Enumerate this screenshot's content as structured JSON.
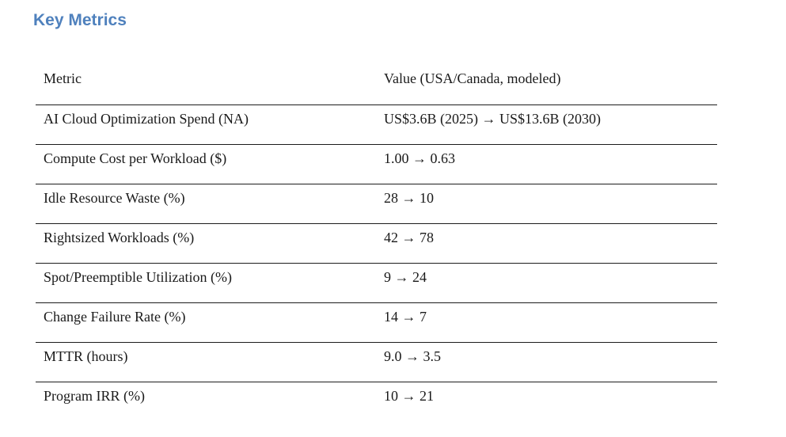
{
  "page": {
    "title": "Key Metrics",
    "title_color": "#4F81BD"
  },
  "table": {
    "headers": {
      "metric": "Metric",
      "value": "Value (USA/Canada, modeled)"
    },
    "rows": [
      {
        "metric": "AI Cloud Optimization Spend (NA)",
        "value": "US$3.6B (2025) → US$13.6B (2030)"
      },
      {
        "metric": "Compute Cost per Workload ($)",
        "value": "1.00 → 0.63"
      },
      {
        "metric": "Idle Resource Waste (%)",
        "value": "28 → 10"
      },
      {
        "metric": "Rightsized Workloads (%)",
        "value": "42 → 78"
      },
      {
        "metric": "Spot/Preemptible Utilization (%)",
        "value": "9 → 24"
      },
      {
        "metric": "Change Failure Rate (%)",
        "value": "14 → 7"
      },
      {
        "metric": "MTTR (hours)",
        "value": "9.0 → 3.5"
      },
      {
        "metric": "Program IRR (%)",
        "value": "10 → 21"
      }
    ]
  }
}
